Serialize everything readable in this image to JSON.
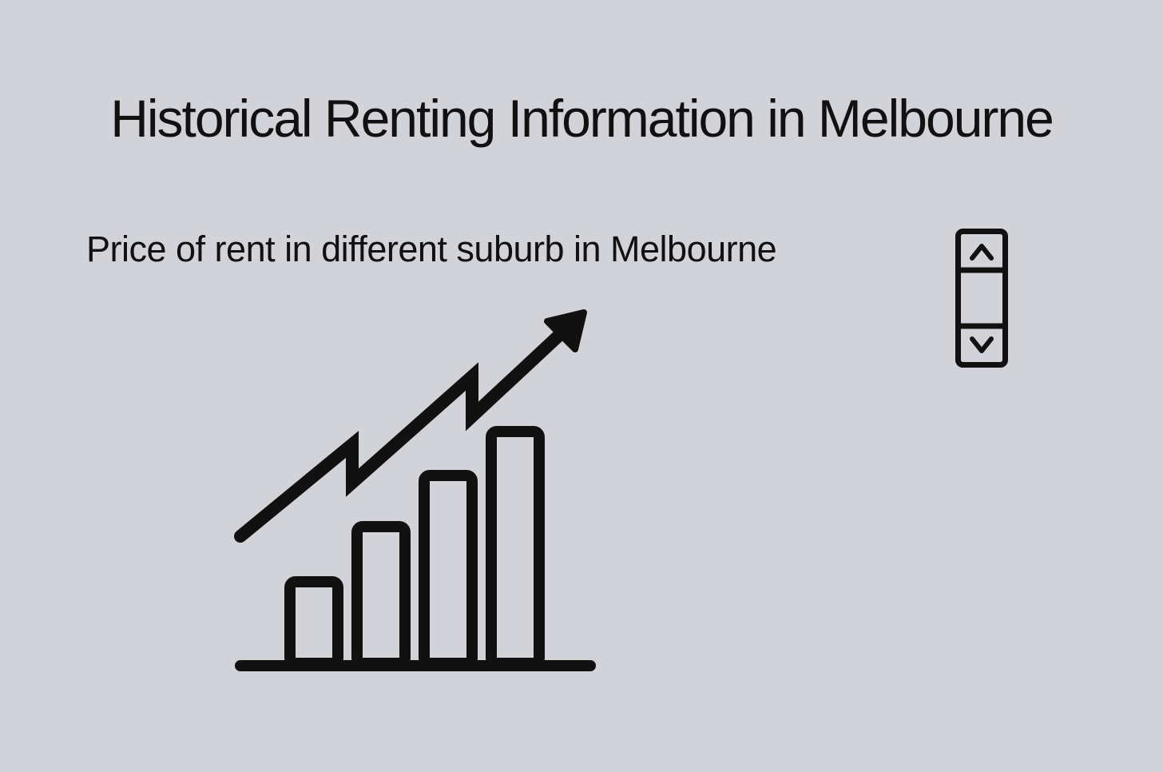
{
  "page": {
    "title": "Historical Renting Information in Melbourne",
    "subtitle": "Price of rent in different suburb in Melbourne"
  },
  "graphic": {
    "icon": "rising-bar-chart-with-arrow-icon",
    "bar_levels": [
      0.35,
      0.59,
      0.81,
      1.0
    ]
  },
  "stepper": {
    "up_icon": "chevron-up-icon",
    "down_icon": "chevron-down-icon"
  },
  "colors": {
    "background": "#d2d3d8",
    "foreground": "#111111"
  }
}
